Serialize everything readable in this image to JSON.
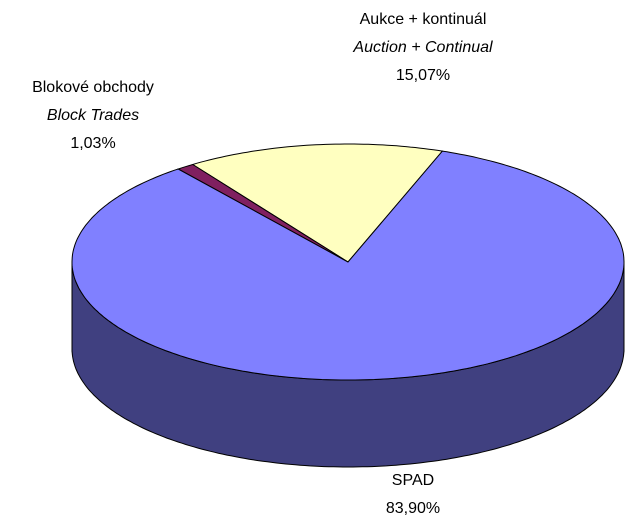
{
  "chart_data": {
    "type": "pie3d",
    "categories": [
      "Aukce + kontinuál",
      "Blokové obchody",
      "SPAD"
    ],
    "categories_en": [
      "Auction + Continual",
      "Block Trades",
      ""
    ],
    "values": [
      15.07,
      1.03,
      83.9
    ],
    "value_labels": [
      "15,07%",
      "1,03%",
      "83,90%"
    ],
    "colors": [
      "#ffffc0",
      "#802060",
      "#8080ff"
    ]
  }
}
